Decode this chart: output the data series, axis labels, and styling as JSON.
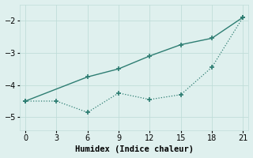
{
  "line1_x": [
    0,
    6,
    9,
    12,
    15,
    18,
    21
  ],
  "line1_y": [
    -4.5,
    -3.75,
    -3.5,
    -3.1,
    -2.75,
    -2.55,
    -1.9
  ],
  "line2_x": [
    0,
    3,
    6,
    9,
    12,
    15,
    18,
    21
  ],
  "line2_y": [
    -4.5,
    -4.5,
    -4.85,
    -4.25,
    -4.45,
    -4.3,
    -3.45,
    -1.9
  ],
  "line_color": "#2d7d72",
  "bg_color": "#dff0ee",
  "grid_color": "#c0ddd9",
  "xlabel": "Humidex (Indice chaleur)",
  "xlim": [
    -0.5,
    21.5
  ],
  "ylim": [
    -5.4,
    -1.5
  ],
  "xticks": [
    0,
    3,
    6,
    9,
    12,
    15,
    18,
    21
  ],
  "yticks": [
    -5,
    -4,
    -3,
    -2
  ],
  "xlabel_fontsize": 7.5,
  "tick_fontsize": 7
}
